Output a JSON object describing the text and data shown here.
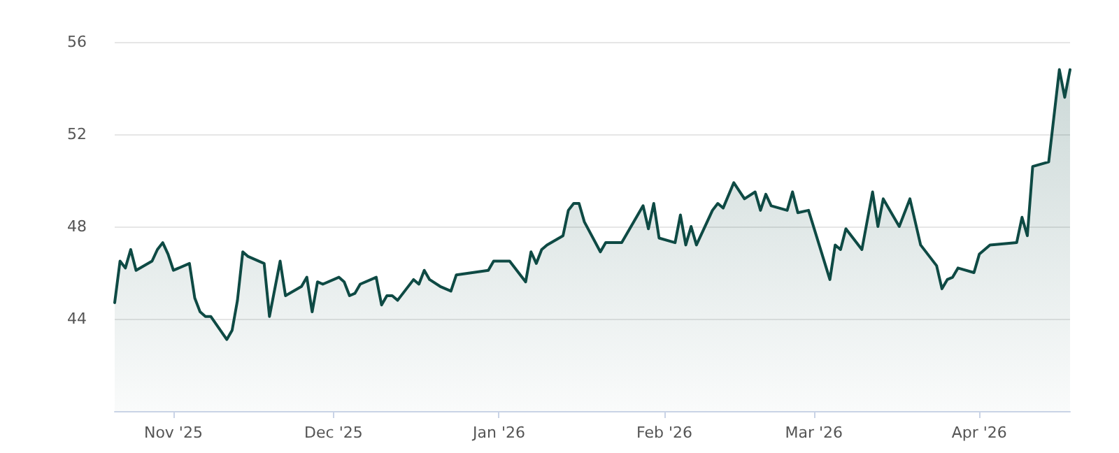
{
  "chart_data": {
    "type": "area",
    "x": [
      "2025-10-21",
      "2025-10-22",
      "2025-10-23",
      "2025-10-24",
      "2025-10-25",
      "2025-10-28",
      "2025-10-29",
      "2025-10-30",
      "2025-10-31",
      "2025-11-01",
      "2025-11-04",
      "2025-11-05",
      "2025-11-06",
      "2025-11-07",
      "2025-11-08",
      "2025-11-11",
      "2025-11-12",
      "2025-11-13",
      "2025-11-14",
      "2025-11-15",
      "2025-11-18",
      "2025-11-19",
      "2025-11-21",
      "2025-11-22",
      "2025-11-25",
      "2025-11-26",
      "2025-11-27",
      "2025-11-28",
      "2025-11-29",
      "2025-12-02",
      "2025-12-03",
      "2025-12-04",
      "2025-12-05",
      "2025-12-06",
      "2025-12-09",
      "2025-12-10",
      "2025-12-11",
      "2025-12-12",
      "2025-12-13",
      "2025-12-16",
      "2025-12-17",
      "2025-12-18",
      "2025-12-19",
      "2025-12-21",
      "2025-12-23",
      "2025-12-24",
      "2025-12-30",
      "2025-12-31",
      "2026-01-03",
      "2026-01-06",
      "2026-01-07",
      "2026-01-08",
      "2026-01-09",
      "2026-01-10",
      "2026-01-13",
      "2026-01-14",
      "2026-01-15",
      "2026-01-16",
      "2026-01-17",
      "2026-01-20",
      "2026-01-21",
      "2026-01-24",
      "2026-01-28",
      "2026-01-29",
      "2026-01-30",
      "2026-01-31",
      "2026-02-03",
      "2026-02-04",
      "2026-02-05",
      "2026-02-06",
      "2026-02-07",
      "2026-02-10",
      "2026-02-11",
      "2026-02-12",
      "2026-02-14",
      "2026-02-16",
      "2026-02-18",
      "2026-02-19",
      "2026-02-20",
      "2026-02-21",
      "2026-02-24",
      "2026-02-25",
      "2026-02-26",
      "2026-02-28",
      "2026-03-04",
      "2026-03-05",
      "2026-03-06",
      "2026-03-07",
      "2026-03-10",
      "2026-03-12",
      "2026-03-13",
      "2026-03-14",
      "2026-03-17",
      "2026-03-19",
      "2026-03-21",
      "2026-03-24",
      "2026-03-25",
      "2026-03-26",
      "2026-03-27",
      "2026-03-28",
      "2026-03-31",
      "2026-04-01",
      "2026-04-02",
      "2026-04-03",
      "2026-04-08",
      "2026-04-09",
      "2026-04-10",
      "2026-04-11",
      "2026-04-14",
      "2026-04-16",
      "2026-04-17",
      "2026-04-18"
    ],
    "series": [
      {
        "color": "#0e4a44",
        "values": [
          44.7,
          46.5,
          46.2,
          47.0,
          46.1,
          46.5,
          47.0,
          47.3,
          46.8,
          46.1,
          46.4,
          44.9,
          44.3,
          44.1,
          44.1,
          43.1,
          43.5,
          44.8,
          46.9,
          46.7,
          46.4,
          44.1,
          46.5,
          45.0,
          45.4,
          45.8,
          44.3,
          45.6,
          45.5,
          45.8,
          45.6,
          45.0,
          45.1,
          45.5,
          45.8,
          44.6,
          45.0,
          45.0,
          44.8,
          45.7,
          45.5,
          46.1,
          45.7,
          45.4,
          45.2,
          45.9,
          46.1,
          46.5,
          46.5,
          45.6,
          46.9,
          46.4,
          47.0,
          47.2,
          47.6,
          48.7,
          49.0,
          49.0,
          48.2,
          46.9,
          47.3,
          47.3,
          48.9,
          47.9,
          49.0,
          47.5,
          47.3,
          48.5,
          47.2,
          48.0,
          47.2,
          48.7,
          49.0,
          48.8,
          49.9,
          49.2,
          49.5,
          48.7,
          49.4,
          48.9,
          48.7,
          49.5,
          48.6,
          48.7,
          45.7,
          47.2,
          47.0,
          47.9,
          47.0,
          49.5,
          48.0,
          49.2,
          48.0,
          49.2,
          47.2,
          46.3,
          45.3,
          45.7,
          45.8,
          46.2,
          46.0,
          46.8,
          47.0,
          47.2,
          47.3,
          48.4,
          47.6,
          50.6,
          50.8,
          54.8,
          53.6,
          54.8
        ]
      }
    ],
    "xlim": [
      "2025-10-21",
      "2026-04-18"
    ],
    "xticks": [
      {
        "value": "2025-11-01",
        "label": "Nov '25"
      },
      {
        "value": "2025-12-01",
        "label": "Dec '25"
      },
      {
        "value": "2026-01-01",
        "label": "Jan '26"
      },
      {
        "value": "2026-02-01",
        "label": "Feb '26"
      },
      {
        "value": "2026-03-01",
        "label": "Mar '26"
      },
      {
        "value": "2026-04-01",
        "label": "Apr '26"
      }
    ],
    "ylim": [
      40,
      56
    ],
    "yticks": [
      44,
      48,
      52,
      56
    ],
    "grid": "y",
    "marker": "none",
    "line_style": "solid"
  }
}
